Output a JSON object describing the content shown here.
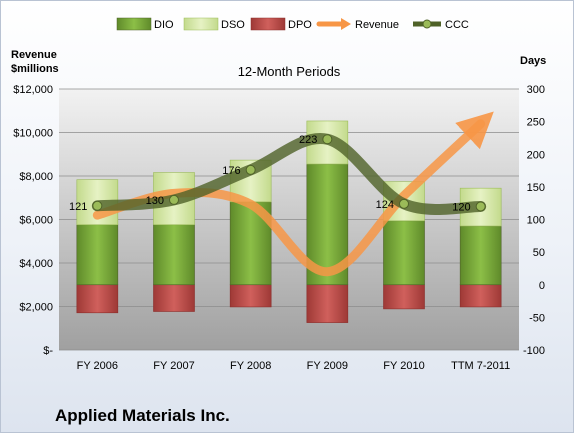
{
  "chart_data": {
    "type": "bar",
    "title": "12-Month Periods",
    "footer_title": "Applied Materials Inc.",
    "left_axis_label_line1": "Revenue",
    "left_axis_label_line2": "$millions",
    "right_axis_label": "Days",
    "categories": [
      "FY 2006",
      "FY 2007",
      "FY 2008",
      "FY 2009",
      "FY 2010",
      "TTM 7-2011"
    ],
    "left_ticks": [
      "$-",
      "$2,000",
      "$4,000",
      "$6,000",
      "$8,000",
      "$10,000",
      "$12,000"
    ],
    "right_ticks": [
      "-100",
      "-50",
      "0",
      "50",
      "100",
      "150",
      "200",
      "250",
      "300"
    ],
    "ylim_days": [
      -100,
      300
    ],
    "ylim_revenue": [
      0,
      12000
    ],
    "legend_position": "top",
    "legend": [
      "DIO",
      "DSO",
      "DPO",
      "Revenue",
      "CCC"
    ],
    "series": [
      {
        "name": "DIO",
        "values": [
          92,
          92,
          127,
          185,
          98,
          90
        ]
      },
      {
        "name": "DSO",
        "values": [
          69,
          80,
          64,
          66,
          60,
          58
        ]
      },
      {
        "name": "DPO",
        "values": [
          -43,
          -41,
          -34,
          -58,
          -37,
          -34
        ]
      },
      {
        "name": "Revenue",
        "values": [
          6200,
          7200,
          6700,
          3600,
          7100,
          10400
        ]
      },
      {
        "name": "CCC",
        "values": [
          121,
          130,
          176,
          223,
          124,
          120
        ]
      }
    ],
    "ccc_labels": [
      "121",
      "130",
      "176",
      "223",
      "124",
      "120"
    ],
    "colors": {
      "DIO": "#77a33b",
      "DSO": "#d4e6a6",
      "DPO": "#c0504d",
      "Revenue": "#f79646",
      "CCC": "#4f6228",
      "plot_bg": "#a6a6a6"
    }
  }
}
